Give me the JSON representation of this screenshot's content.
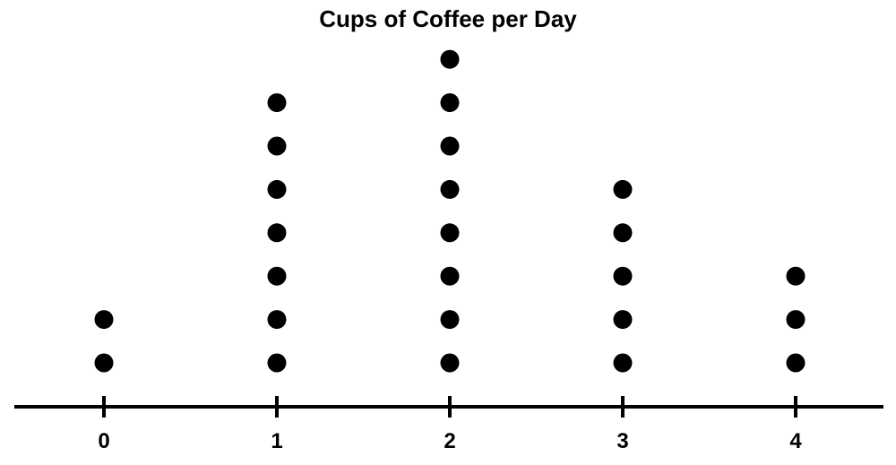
{
  "chart_data": {
    "type": "dot-plot",
    "title": "Cups of Coffee per Day",
    "xlabel": "",
    "ylabel": "",
    "categories": [
      "0",
      "1",
      "2",
      "3",
      "4"
    ],
    "x": [
      0,
      1,
      2,
      3,
      4
    ],
    "counts": [
      2,
      7,
      8,
      5,
      3
    ],
    "xlim": [
      -0.5,
      4.5
    ],
    "grid": false,
    "legend": "none",
    "dot_color": "#000000",
    "axis_color": "#000000"
  }
}
